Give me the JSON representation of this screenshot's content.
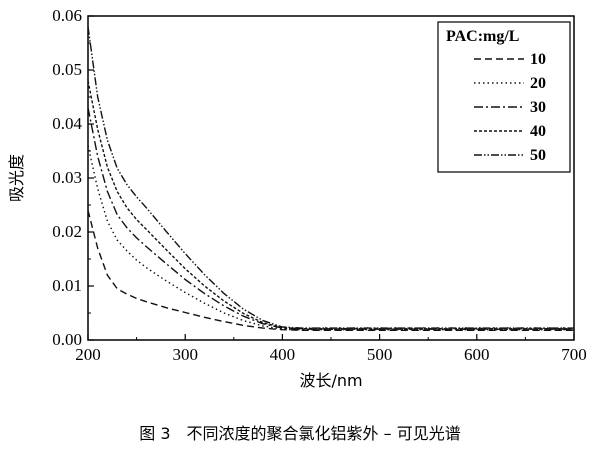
{
  "chart_data": {
    "type": "line",
    "xlabel": "波长/nm",
    "ylabel": "吸光度",
    "xlim": [
      200,
      700
    ],
    "ylim": [
      0.0,
      0.06
    ],
    "xticks": [
      200,
      300,
      400,
      500,
      600,
      700
    ],
    "xtick_labels": [
      "200",
      "300",
      "400",
      "500",
      "600",
      "700"
    ],
    "yticks": [
      0.0,
      0.01,
      0.02,
      0.03,
      0.04,
      0.05,
      0.06
    ],
    "ytick_labels": [
      "0.00",
      "0.01",
      "0.02",
      "0.03",
      "0.04",
      "0.05",
      "0.06"
    ],
    "grid": false,
    "legend": {
      "title": "PAC:mg/L",
      "position": "top-right"
    },
    "x": [
      200,
      210,
      220,
      230,
      240,
      250,
      260,
      280,
      300,
      320,
      340,
      360,
      380,
      400,
      420,
      440,
      460,
      500,
      550,
      600,
      650,
      700
    ],
    "series": [
      {
        "name": "10",
        "dash": "7,4",
        "values": [
          0.024,
          0.017,
          0.012,
          0.0095,
          0.0085,
          0.0077,
          0.0071,
          0.006,
          0.0051,
          0.0042,
          0.0034,
          0.0027,
          0.0022,
          0.0019,
          0.0018,
          0.0018,
          0.0018,
          0.0018,
          0.0018,
          0.0018,
          0.0018,
          0.0018
        ]
      },
      {
        "name": "20",
        "dash": "1.5,3",
        "values": [
          0.036,
          0.028,
          0.022,
          0.0185,
          0.0165,
          0.0148,
          0.0134,
          0.011,
          0.0088,
          0.0068,
          0.005,
          0.0036,
          0.0026,
          0.002,
          0.0019,
          0.0019,
          0.0019,
          0.0019,
          0.0019,
          0.0019,
          0.0019,
          0.0019
        ]
      },
      {
        "name": "30",
        "dash": "9,3,2,3",
        "values": [
          0.043,
          0.034,
          0.0275,
          0.0232,
          0.0208,
          0.0189,
          0.0173,
          0.0142,
          0.0112,
          0.0086,
          0.0063,
          0.0044,
          0.003,
          0.0022,
          0.002,
          0.002,
          0.002,
          0.002,
          0.002,
          0.002,
          0.002,
          0.002
        ]
      },
      {
        "name": "40",
        "dash": "3,2",
        "values": [
          0.048,
          0.039,
          0.032,
          0.0275,
          0.0245,
          0.0223,
          0.0205,
          0.0168,
          0.0132,
          0.01,
          0.0072,
          0.0049,
          0.0032,
          0.0023,
          0.0021,
          0.0021,
          0.0021,
          0.0021,
          0.0021,
          0.0021,
          0.0021,
          0.0021
        ]
      },
      {
        "name": "50",
        "dash": "8,2,1.5,2,1.5,2",
        "values": [
          0.058,
          0.045,
          0.037,
          0.0318,
          0.0288,
          0.0265,
          0.0245,
          0.0202,
          0.016,
          0.0121,
          0.0086,
          0.0057,
          0.0036,
          0.0024,
          0.0022,
          0.0022,
          0.0022,
          0.0022,
          0.0022,
          0.0022,
          0.0022,
          0.0022
        ]
      }
    ]
  },
  "caption": "图 3　不同浓度的聚合氯化铝紫外 – 可见光谱"
}
